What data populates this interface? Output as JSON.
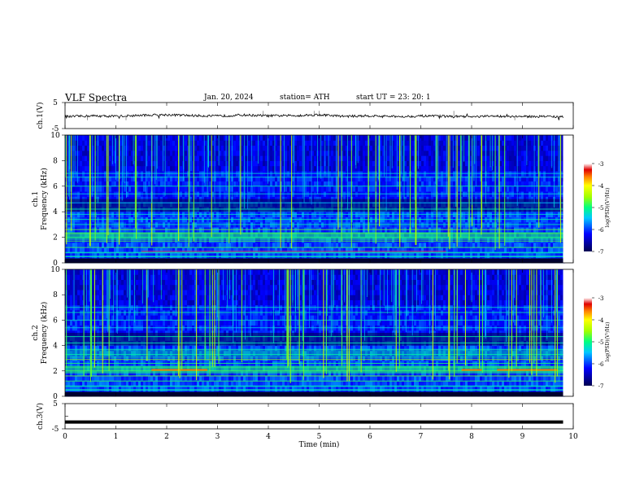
{
  "header": {
    "title": "VLF  Spectra",
    "date": "Jan. 20, 2024",
    "station": "station= ATH",
    "start": "start  UT  =    23: 20: 1"
  },
  "chart_data": [
    {
      "type": "line",
      "panel": "ch1-waveform",
      "ylabel": "ch.1(V)",
      "ylim": [
        -5,
        5
      ],
      "yticks": [
        "5",
        "-5"
      ],
      "xlim": [
        0,
        10
      ],
      "x": [
        0,
        0.5,
        1,
        1.5,
        2,
        2.5,
        3,
        3.5,
        4,
        4.5,
        5,
        5.5,
        6,
        6.5,
        7,
        7.5,
        8,
        8.5,
        9,
        9.5,
        9.8
      ],
      "y": [
        -0.5,
        -0.1,
        -0.3,
        0.1,
        0.3,
        0.0,
        -0.2,
        0.2,
        -0.1,
        0.0,
        0.3,
        -0.3,
        -0.1,
        -0.4,
        -0.2,
        -0.3,
        -0.5,
        -0.2,
        -0.4,
        -0.3,
        -0.6
      ]
    },
    {
      "type": "heatmap",
      "panel": "ch1-spectrogram",
      "ylabel": "ch.1",
      "ylabel2": "Frequency  (kHz)",
      "ylim": [
        0,
        10
      ],
      "yticks": [
        "10",
        "8",
        "6",
        "4",
        "2",
        "0"
      ],
      "xlim": [
        0,
        10
      ],
      "data_end_min": 9.8,
      "colorbar": {
        "label": "log(PSD)(V²/Hz)",
        "range": [
          -7,
          -3
        ],
        "ticks": [
          "-3",
          "-4",
          "-5",
          "-6",
          "-7"
        ]
      },
      "bands_khz": [
        0.2,
        0.5,
        0.8,
        1.2,
        1.7,
        2.0,
        2.3,
        2.6,
        3.0,
        3.4,
        3.8,
        4.2,
        4.7,
        5.4,
        6.0,
        6.7,
        7.0
      ]
    },
    {
      "type": "heatmap",
      "panel": "ch2-spectrogram",
      "ylabel": "ch.2",
      "ylabel2": "Frequency  (kHz)",
      "ylim": [
        0,
        10
      ],
      "yticks": [
        "10",
        "8",
        "6",
        "4",
        "2",
        "0"
      ],
      "xlim": [
        0,
        10
      ],
      "data_end_min": 9.8,
      "colorbar": {
        "label": "log(PSD)(V²/Hz)",
        "range": [
          -7,
          -3
        ],
        "ticks": [
          "-3",
          "-4",
          "-5",
          "-6",
          "-7"
        ]
      },
      "bands_khz": [
        0.2,
        0.5,
        0.8,
        1.2,
        1.6,
        2.0,
        2.3,
        2.6,
        2.9,
        3.3,
        3.7,
        4.2,
        4.7,
        5.4,
        6.0,
        6.6,
        7.0
      ]
    },
    {
      "type": "line",
      "panel": "ch3-waveform",
      "ylabel": "ch.3(V)",
      "ylim": [
        -5,
        5
      ],
      "yticks": [
        "5",
        "-5"
      ],
      "xlim": [
        0,
        10
      ],
      "xlabel": "Time  (min)",
      "xticks": [
        "0",
        "1",
        "2",
        "3",
        "4",
        "5",
        "6",
        "7",
        "8",
        "9",
        "10"
      ],
      "x": [
        0,
        9.8
      ],
      "y": [
        -2.3,
        -2.3
      ]
    }
  ]
}
